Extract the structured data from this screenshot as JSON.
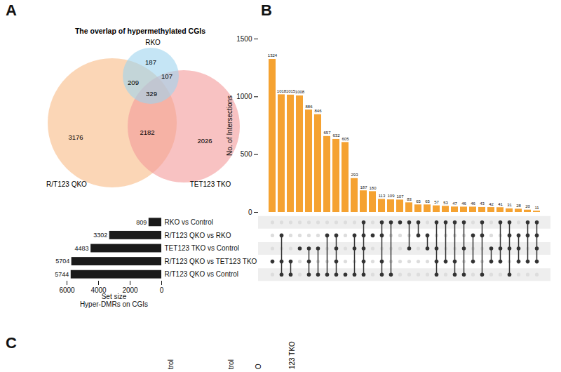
{
  "panel_labels": [
    "A",
    "B",
    "C"
  ],
  "chart_data": [
    {
      "type": "venn",
      "title": "The overlap of hypermethylated CGIs",
      "sets": [
        {
          "name": "RKO",
          "color": "#9fd3ee"
        },
        {
          "name": "R/T123 QKO",
          "color": "#f9bb86"
        },
        {
          "name": "TET123 TKO",
          "color": "#f39a9a"
        }
      ],
      "regions": [
        {
          "sets": [
            "RKO"
          ],
          "value": 187
        },
        {
          "sets": [
            "RKO",
            "TET123 TKO"
          ],
          "value": 107
        },
        {
          "sets": [
            "RKO",
            "R/T123 QKO"
          ],
          "value": 209
        },
        {
          "sets": [
            "RKO",
            "R/T123 QKO",
            "TET123 TKO"
          ],
          "value": 329
        },
        {
          "sets": [
            "R/T123 QKO"
          ],
          "value": 3176
        },
        {
          "sets": [
            "R/T123 QKO",
            "TET123 TKO"
          ],
          "value": 2182
        },
        {
          "sets": [
            "TET123 TKO"
          ],
          "value": 2026
        }
      ]
    },
    {
      "type": "bar",
      "orientation": "horizontal",
      "categories": [
        "RKO vs Control",
        "R/T123 QKO vs RKO",
        "TET123 TKO vs Control",
        "R/T123 QKO vs TET123 TKO",
        "R/T123 QKO vs Control"
      ],
      "values": [
        809,
        3302,
        4483,
        5704,
        5744
      ],
      "color": "#1a1a1a",
      "xlabel": [
        "Set size",
        "Hyper-DMRs on CGIs"
      ],
      "xlim": [
        6000,
        0
      ],
      "xticks": [
        0,
        2000,
        4000,
        6000
      ],
      "data_labels": true
    },
    {
      "type": "upset",
      "ylabel": "No. of Intersections",
      "ylim": [
        0,
        1500
      ],
      "yticks": [
        0,
        500,
        1000,
        1500
      ],
      "color": "#f5a231",
      "data_labels": true,
      "sets": [
        "RKO vs Control",
        "R/T123 QKO vs RKO",
        "TET123 TKO vs Control",
        "R/T123 QKO vs TET123 TKO",
        "R/T123 QKO vs Control"
      ],
      "values": [
        1324,
        1018,
        1015,
        1008,
        886,
        846,
        657,
        632,
        605,
        293,
        187,
        180,
        113,
        109,
        107,
        83,
        65,
        65,
        57,
        53,
        47,
        46,
        46,
        43,
        42,
        41,
        31,
        28,
        20,
        11
      ],
      "members": [
        [
          "R/T123 QKO vs TET123 TKO"
        ],
        [
          "R/T123 QKO vs RKO",
          "R/T123 QKO vs TET123 TKO",
          "R/T123 QKO vs Control"
        ],
        [
          "R/T123 QKO vs TET123 TKO",
          "R/T123 QKO vs Control"
        ],
        [
          "TET123 TKO vs Control"
        ],
        [
          "TET123 TKO vs Control",
          "R/T123 QKO vs TET123 TKO",
          "R/T123 QKO vs Control"
        ],
        [
          "TET123 TKO vs Control",
          "R/T123 QKO vs Control"
        ],
        [
          "R/T123 QKO vs RKO",
          "R/T123 QKO vs Control"
        ],
        [
          "R/T123 QKO vs RKO",
          "TET123 TKO vs Control",
          "R/T123 QKO vs TET123 TKO",
          "R/T123 QKO vs Control"
        ],
        [
          "R/T123 QKO vs Control"
        ],
        [
          "R/T123 QKO vs RKO",
          "TET123 TKO vs Control",
          "R/T123 QKO vs Control"
        ],
        [
          "RKO vs Control",
          "R/T123 QKO vs RKO",
          "TET123 TKO vs Control",
          "R/T123 QKO vs TET123 TKO",
          "R/T123 QKO vs Control"
        ],
        [
          "R/T123 QKO vs RKO"
        ],
        [
          "RKO vs Control",
          "R/T123 QKO vs RKO",
          "R/T123 QKO vs TET123 TKO",
          "R/T123 QKO vs Control"
        ],
        [
          "RKO vs Control",
          "R/T123 QKO vs Control"
        ],
        [
          "RKO vs Control"
        ],
        [
          "RKO vs Control",
          "TET123 TKO vs Control"
        ],
        [
          "RKO vs Control",
          "R/T123 QKO vs RKO"
        ],
        [
          "R/T123 QKO vs RKO",
          "TET123 TKO vs Control"
        ],
        [
          "RKO vs Control",
          "TET123 TKO vs Control",
          "R/T123 QKO vs TET123 TKO",
          "R/T123 QKO vs Control"
        ],
        [
          "RKO vs Control",
          "R/T123 QKO vs TET123 TKO"
        ],
        [
          "RKO vs Control",
          "R/T123 QKO vs TET123 TKO",
          "R/T123 QKO vs Control"
        ],
        [
          "RKO vs Control",
          "TET123 TKO vs Control",
          "R/T123 QKO vs Control"
        ],
        [
          "R/T123 QKO vs RKO",
          "R/T123 QKO vs TET123 TKO"
        ],
        [
          "RKO vs Control",
          "R/T123 QKO vs RKO",
          "R/T123 QKO vs Control"
        ],
        [
          "TET123 TKO vs Control",
          "R/T123 QKO vs TET123 TKO"
        ],
        [
          "RKO vs Control",
          "TET123 TKO vs Control",
          "R/T123 QKO vs TET123 TKO"
        ],
        [
          "RKO vs Control",
          "R/T123 QKO vs RKO",
          "TET123 TKO vs Control",
          "R/T123 QKO vs Control"
        ],
        [
          "R/T123 QKO vs RKO",
          "TET123 TKO vs Control",
          "R/T123 QKO vs TET123 TKO"
        ],
        [
          "RKO vs Control",
          "R/T123 QKO vs RKO",
          "R/T123 QKO vs TET123 TKO"
        ],
        [
          "RKO vs Control",
          "R/T123 QKO vs RKO",
          "TET123 TKO vs Control",
          "R/T123 QKO vs TET123 TKO"
        ]
      ]
    },
    {
      "type": "heatmap",
      "categories": [
        "trol",
        "trol",
        "O",
        "123 TKO"
      ],
      "tick_labels": "x"
    }
  ]
}
